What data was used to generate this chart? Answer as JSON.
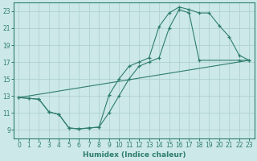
{
  "xlabel": "Humidex (Indice chaleur)",
  "bg_color": "#cce8e8",
  "line_color": "#2e7d6e",
  "grid_color": "#aacece",
  "xlim": [
    -0.5,
    23.5
  ],
  "ylim": [
    8.0,
    24.0
  ],
  "yticks": [
    9,
    11,
    13,
    15,
    17,
    19,
    21,
    23
  ],
  "xticks": [
    0,
    1,
    2,
    3,
    4,
    5,
    6,
    7,
    8,
    9,
    10,
    11,
    12,
    13,
    14,
    15,
    16,
    17,
    18,
    19,
    20,
    21,
    22,
    23
  ],
  "line1_x": [
    0,
    1,
    2,
    3,
    4,
    5,
    6,
    7,
    8,
    9,
    10,
    11,
    12,
    13,
    14,
    15,
    16,
    17,
    18,
    19,
    20,
    21,
    22,
    23
  ],
  "line1_y": [
    12.8,
    12.7,
    12.6,
    11.1,
    10.8,
    9.2,
    9.1,
    9.2,
    9.3,
    13.1,
    15.0,
    16.5,
    17.0,
    17.5,
    21.2,
    22.8,
    23.5,
    23.2,
    22.8,
    22.8,
    21.3,
    20.0,
    17.8,
    17.2
  ],
  "line2_x": [
    0,
    1,
    2,
    3,
    4,
    5,
    6,
    7,
    8,
    9,
    10,
    11,
    12,
    13,
    14,
    15,
    16,
    17,
    18,
    22,
    23
  ],
  "line2_y": [
    12.8,
    12.7,
    12.6,
    11.1,
    10.8,
    9.2,
    9.1,
    9.2,
    9.3,
    11.0,
    13.0,
    15.0,
    16.5,
    17.0,
    17.5,
    21.0,
    23.2,
    22.8,
    17.2,
    17.2,
    17.2
  ],
  "line3_x": [
    0,
    23
  ],
  "line3_y": [
    12.8,
    17.2
  ]
}
